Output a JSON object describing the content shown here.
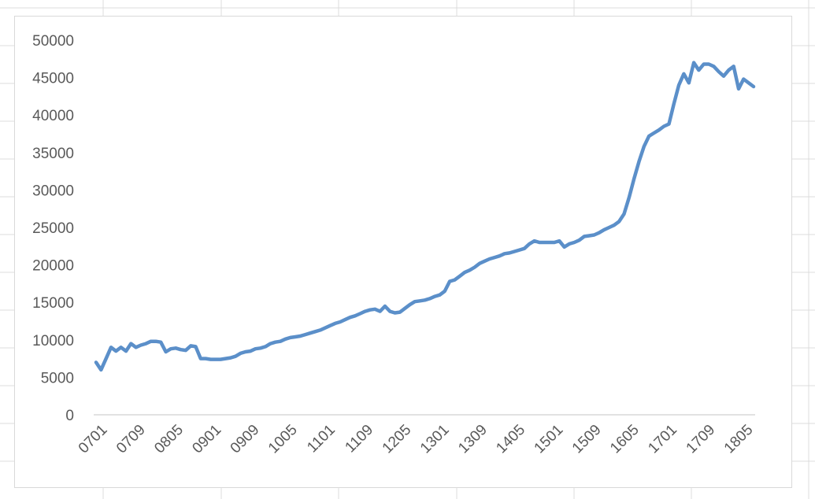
{
  "colors": {
    "series_line": "#5b8fc9",
    "axis_text": "#595959",
    "axis_line": "#d9d9d9",
    "sheet_grid": "#dcdcdc"
  },
  "chart_data": {
    "type": "line",
    "title": "",
    "xlabel": "",
    "ylabel": "",
    "grid": false,
    "legend": "none",
    "ylim": [
      0,
      50000
    ],
    "yticks": [
      0,
      5000,
      10000,
      15000,
      20000,
      25000,
      30000,
      35000,
      40000,
      45000,
      50000
    ],
    "xtick_labels": [
      "0701",
      "0709",
      "0805",
      "0901",
      "0909",
      "1005",
      "1101",
      "1109",
      "1205",
      "1301",
      "1309",
      "1405",
      "1501",
      "1509",
      "1605",
      "1701",
      "1709",
      "1805"
    ],
    "series": [
      {
        "values": [
          7000,
          6000,
          7500,
          9000,
          8500,
          9000,
          8500,
          9500,
          9000,
          9300,
          9500,
          9800,
          9800,
          9700,
          8400,
          8800,
          8900,
          8700,
          8600,
          9200,
          9100,
          7500,
          7500,
          7400,
          7400,
          7400,
          7500,
          7600,
          7800,
          8200,
          8400,
          8500,
          8800,
          8900,
          9100,
          9500,
          9700,
          9800,
          10100,
          10300,
          10400,
          10500,
          10700,
          10900,
          11100,
          11300,
          11600,
          11900,
          12200,
          12400,
          12700,
          13000,
          13200,
          13500,
          13800,
          14000,
          14100,
          13800,
          14500,
          13800,
          13600,
          13700,
          14200,
          14700,
          15100,
          15200,
          15300,
          15500,
          15800,
          16000,
          16500,
          17800,
          18000,
          18500,
          19000,
          19300,
          19700,
          20200,
          20500,
          20800,
          21000,
          21200,
          21500,
          21600,
          21800,
          22000,
          22200,
          22800,
          23200,
          23000,
          23000,
          23000,
          23000,
          23200,
          22400,
          22800,
          23000,
          23300,
          23800,
          23900,
          24000,
          24300,
          24700,
          25000,
          25300,
          25800,
          26800,
          29000,
          31500,
          33800,
          35800,
          37200,
          37600,
          38000,
          38500,
          38800,
          41500,
          44000,
          45500,
          44300,
          47000,
          46000,
          46800,
          46800,
          46500,
          45800,
          45200,
          46000,
          46500,
          43500,
          44800,
          44300,
          43800
        ]
      }
    ]
  }
}
